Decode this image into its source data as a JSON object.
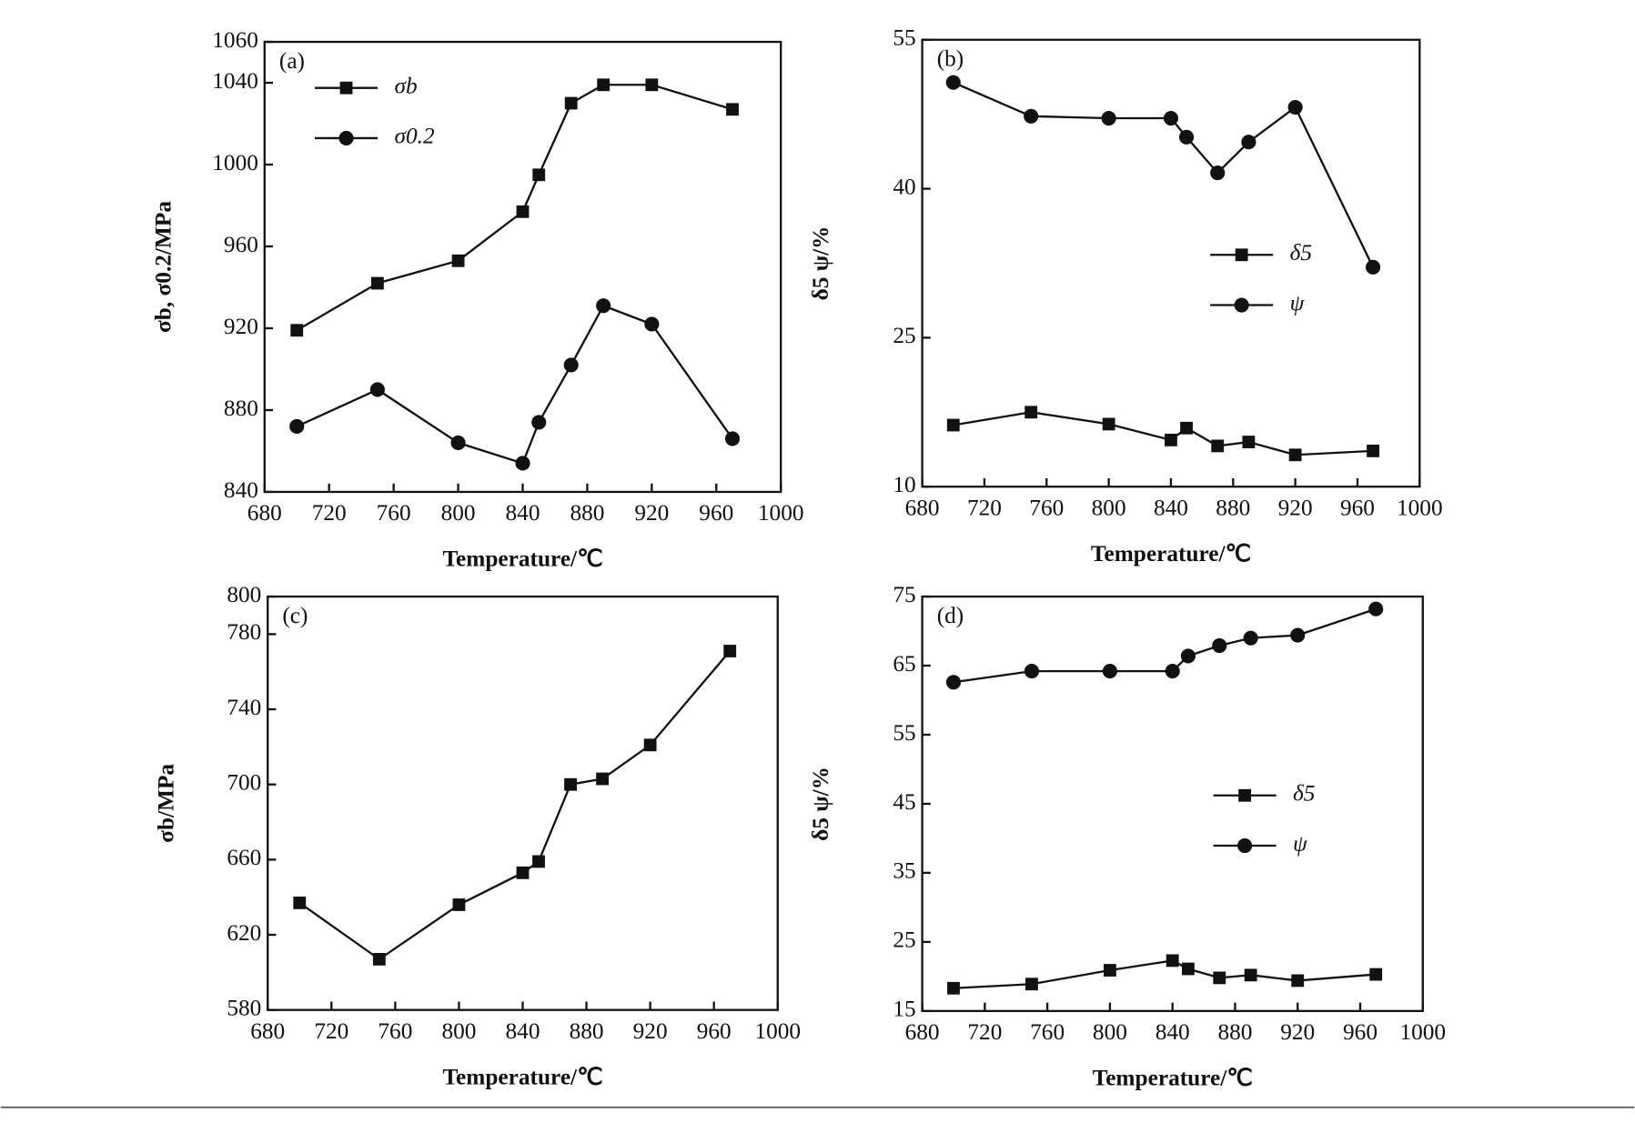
{
  "chart_data": [
    {
      "type": "line",
      "title": "(a)",
      "x_label": "Temperature/℃",
      "y_label": "σb, σ0.2/MPa",
      "x": [
        700,
        750,
        800,
        840,
        850,
        870,
        890,
        920,
        970
      ],
      "xlim": [
        680,
        1000
      ],
      "xticks": [
        680,
        720,
        760,
        800,
        840,
        880,
        920,
        960,
        1000
      ],
      "ylim": [
        840,
        1060
      ],
      "yticks": [
        840,
        880,
        920,
        960,
        1000,
        1040,
        1060
      ],
      "legend": "upper left",
      "series": [
        {
          "name": "σb",
          "color": "#111111",
          "marker": "square",
          "values": [
            919,
            942,
            953,
            977,
            995,
            1030,
            1039,
            1039,
            1027
          ]
        },
        {
          "name": "σ0.2",
          "color": "#111111",
          "marker": "circle",
          "values": [
            872,
            890,
            864,
            854,
            874,
            902,
            931,
            922,
            866
          ]
        }
      ]
    },
    {
      "type": "line",
      "title": "(b)",
      "x_label": "Temperature/℃",
      "y_label": "δ5 ψ/%",
      "x": [
        700,
        750,
        800,
        840,
        850,
        870,
        890,
        920,
        970
      ],
      "xlim": [
        680,
        1000
      ],
      "xticks": [
        680,
        720,
        760,
        800,
        840,
        880,
        920,
        960,
        1000
      ],
      "ylim": [
        10,
        55
      ],
      "yticks": [
        10,
        25,
        40,
        55
      ],
      "legend": "center right",
      "series": [
        {
          "name": "δ5",
          "color": "#111111",
          "marker": "square",
          "values": [
            16.2,
            17.5,
            16.3,
            14.7,
            15.9,
            14.1,
            14.5,
            13.2,
            13.6
          ]
        },
        {
          "name": "ψ",
          "color": "#111111",
          "marker": "circle",
          "values": [
            50.7,
            47.3,
            47.1,
            47.1,
            45.2,
            41.6,
            44.7,
            48.2,
            32.1
          ]
        }
      ]
    },
    {
      "type": "line",
      "title": "(c)",
      "x_label": "Temperature/℃",
      "y_label": "σb/MPa",
      "x": [
        700,
        750,
        800,
        840,
        850,
        870,
        890,
        920,
        970
      ],
      "xlim": [
        680,
        1000
      ],
      "xticks": [
        680,
        720,
        760,
        800,
        840,
        880,
        920,
        960,
        1000
      ],
      "ylim": [
        580,
        800
      ],
      "yticks": [
        580,
        620,
        660,
        700,
        740,
        780,
        800
      ],
      "series": [
        {
          "color": "#111111",
          "marker": "square",
          "values": [
            637,
            607,
            636,
            653,
            659,
            700,
            703,
            721,
            771
          ]
        }
      ]
    },
    {
      "type": "line",
      "title": "(d)",
      "x_label": "Temperature/℃",
      "y_label": "δ5 ψ/%",
      "x": [
        700,
        750,
        800,
        840,
        850,
        870,
        890,
        920,
        970
      ],
      "xlim": [
        680,
        1000
      ],
      "xticks": [
        680,
        720,
        760,
        800,
        840,
        880,
        920,
        960,
        1000
      ],
      "ylim": [
        15,
        75
      ],
      "yticks": [
        15,
        25,
        35,
        45,
        55,
        65,
        75
      ],
      "legend": "center right",
      "series": [
        {
          "name": "δ5",
          "color": "#111111",
          "marker": "square",
          "values": [
            18.3,
            18.9,
            20.9,
            22.3,
            21.1,
            19.8,
            20.2,
            19.4,
            20.3
          ]
        },
        {
          "name": "ψ",
          "color": "#111111",
          "marker": "circle",
          "values": [
            62.6,
            64.2,
            64.2,
            64.2,
            66.4,
            67.9,
            69.0,
            69.4,
            73.2
          ]
        }
      ]
    }
  ]
}
